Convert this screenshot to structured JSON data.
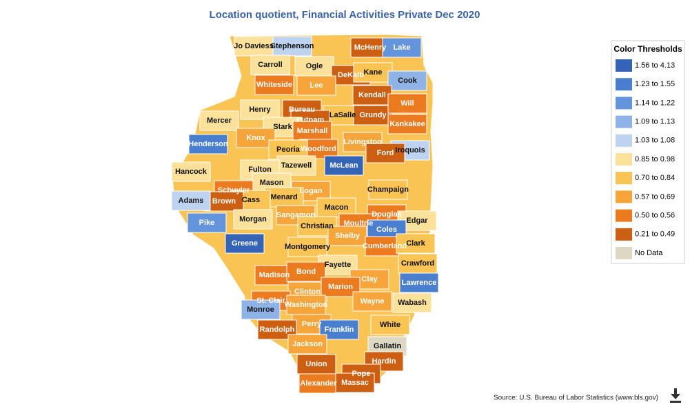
{
  "title": "Location quotient, Financial Activities Private Dec 2020",
  "legend": {
    "title": "Color Thresholds",
    "items": [
      {
        "label": "1.56 to 4.13",
        "color": "#3563b5"
      },
      {
        "label": "1.23 to 1.55",
        "color": "#4a7fd0"
      },
      {
        "label": "1.14 to 1.22",
        "color": "#6495dc"
      },
      {
        "label": "1.09 to 1.13",
        "color": "#8fb3e6"
      },
      {
        "label": "1.03 to 1.08",
        "color": "#bdd3f0"
      },
      {
        "label": "0.85 to 0.98",
        "color": "#fbe19a"
      },
      {
        "label": "0.70 to 0.84",
        "color": "#f9c453"
      },
      {
        "label": "0.57 to 0.69",
        "color": "#f5a53a"
      },
      {
        "label": "0.50 to 0.56",
        "color": "#ec7a1f"
      },
      {
        "label": "0.21 to 0.49",
        "color": "#cc5f12"
      },
      {
        "label": "No Data",
        "color": "#ddd8c3"
      }
    ]
  },
  "counties": [
    {
      "name": "Jo Daviess",
      "color": "#fbe19a"
    },
    {
      "name": "Stephenson",
      "color": "#bdd3f0"
    },
    {
      "name": "McHenry",
      "color": "#cc5f12"
    },
    {
      "name": "Lake",
      "color": "#6495dc"
    },
    {
      "name": "Carroll",
      "color": "#fbe19a"
    },
    {
      "name": "Ogle",
      "color": "#fbe19a"
    },
    {
      "name": "DeKalb",
      "color": "#cc5f12"
    },
    {
      "name": "Kane",
      "color": "#f9c453"
    },
    {
      "name": "Cook",
      "color": "#8fb3e6"
    },
    {
      "name": "Whiteside",
      "color": "#ec7a1f"
    },
    {
      "name": "Lee",
      "color": "#f5a53a"
    },
    {
      "name": "Kendall",
      "color": "#cc5f12"
    },
    {
      "name": "Henry",
      "color": "#fbe19a"
    },
    {
      "name": "Bureau",
      "color": "#cc5f12"
    },
    {
      "name": "LaSalle",
      "color": "#f9c453"
    },
    {
      "name": "Grundy",
      "color": "#cc5f12"
    },
    {
      "name": "Will",
      "color": "#ec7a1f"
    },
    {
      "name": "Putnam",
      "color": "#cc5f12"
    },
    {
      "name": "Mercer",
      "color": "#fbe19a"
    },
    {
      "name": "Stark",
      "color": "#fbe19a"
    },
    {
      "name": "Marshall",
      "color": "#ec7a1f"
    },
    {
      "name": "Kankakee",
      "color": "#ec7a1f"
    },
    {
      "name": "Knox",
      "color": "#f5a53a"
    },
    {
      "name": "Woodford",
      "color": "#ec7a1f"
    },
    {
      "name": "Livingston",
      "color": "#f5a53a"
    },
    {
      "name": "Iroquois",
      "color": "#bdd3f0"
    },
    {
      "name": "Henderson",
      "color": "#4a7fd0"
    },
    {
      "name": "Peoria",
      "color": "#f9c453"
    },
    {
      "name": "Ford",
      "color": "#cc5f12"
    },
    {
      "name": "McLean",
      "color": "#3563b5"
    },
    {
      "name": "Tazewell",
      "color": "#fbe19a"
    },
    {
      "name": "Hancock",
      "color": "#fbe19a"
    },
    {
      "name": "Fulton",
      "color": "#fbe19a"
    },
    {
      "name": "Mason",
      "color": "#fbe19a"
    },
    {
      "name": "Logan",
      "color": "#f5a53a"
    },
    {
      "name": "Champaign",
      "color": "#f9c453"
    },
    {
      "name": "Schuyler",
      "color": "#ec7a1f"
    },
    {
      "name": "Menard",
      "color": "#f9c453"
    },
    {
      "name": "Cass",
      "color": "#f9c453"
    },
    {
      "name": "Brown",
      "color": "#cc5f12"
    },
    {
      "name": "Adams",
      "color": "#bdd3f0"
    },
    {
      "name": "Macon",
      "color": "#f9c453"
    },
    {
      "name": "Douglas",
      "color": "#ec7a1f"
    },
    {
      "name": "Sangamon",
      "color": "#f5a53a"
    },
    {
      "name": "Pike",
      "color": "#6495dc"
    },
    {
      "name": "Morgan",
      "color": "#fbe19a"
    },
    {
      "name": "Christian",
      "color": "#f9c453"
    },
    {
      "name": "Moultrie",
      "color": "#ec7a1f"
    },
    {
      "name": "Edgar",
      "color": "#fbe19a"
    },
    {
      "name": "Coles",
      "color": "#4a7fd0"
    },
    {
      "name": "Shelby",
      "color": "#f5a53a"
    },
    {
      "name": "Greene",
      "color": "#3563b5"
    },
    {
      "name": "Montgomery",
      "color": "#f9c453"
    },
    {
      "name": "Cumberland",
      "color": "#ec7a1f"
    },
    {
      "name": "Clark",
      "color": "#f9c453"
    },
    {
      "name": "Fayette",
      "color": "#fbe19a"
    },
    {
      "name": "Crawford",
      "color": "#f9c453"
    },
    {
      "name": "Madison",
      "color": "#ec7a1f"
    },
    {
      "name": "Bond",
      "color": "#ec7a1f"
    },
    {
      "name": "Clay",
      "color": "#f5a53a"
    },
    {
      "name": "Lawrence",
      "color": "#4a7fd0"
    },
    {
      "name": "Clinton",
      "color": "#f5a53a"
    },
    {
      "name": "Marion",
      "color": "#ec7a1f"
    },
    {
      "name": "St. Clair",
      "color": "#ec7a1f"
    },
    {
      "name": "Washington",
      "color": "#f5a53a"
    },
    {
      "name": "Wayne",
      "color": "#f5a53a"
    },
    {
      "name": "Wabash",
      "color": "#fbe19a"
    },
    {
      "name": "Monroe",
      "color": "#8fb3e6"
    },
    {
      "name": "Perry",
      "color": "#f5a53a"
    },
    {
      "name": "White",
      "color": "#f9c453"
    },
    {
      "name": "Randolph",
      "color": "#cc5f12"
    },
    {
      "name": "Franklin",
      "color": "#4a7fd0"
    },
    {
      "name": "Jackson",
      "color": "#f5a53a"
    },
    {
      "name": "Gallatin",
      "color": "#ddd8c3"
    },
    {
      "name": "Union",
      "color": "#cc5f12"
    },
    {
      "name": "Hardin",
      "color": "#cc5f12"
    },
    {
      "name": "Pope",
      "color": "#cc5f12"
    },
    {
      "name": "Alexander",
      "color": "#ec7a1f"
    },
    {
      "name": "Massac",
      "color": "#cc5f12"
    }
  ],
  "source": "Source: U.S. Bureau of Labor Statistics (www.bls.gov)"
}
